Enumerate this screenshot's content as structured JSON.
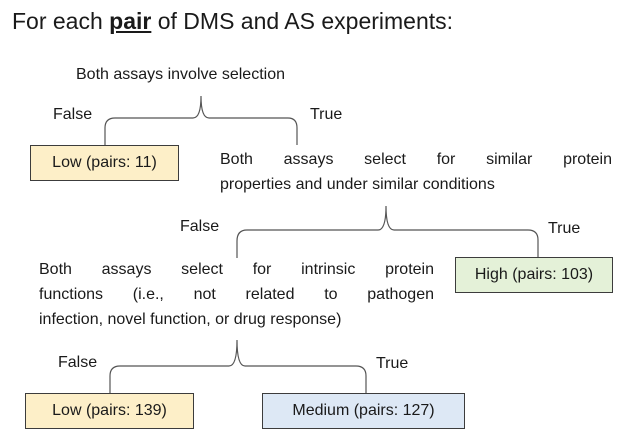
{
  "title": {
    "prefix": "For each ",
    "keyword": "pair",
    "suffix": " of DMS and AS experiments:"
  },
  "node1": {
    "question": "Both assays involve selection",
    "false_label": "False",
    "true_label": "True",
    "false_outcome": "Low (pairs: 11)"
  },
  "node2": {
    "question_line1": "Both assays select for similar protein",
    "question_line2": "properties and under similar conditions",
    "false_label": "False",
    "true_label": "True",
    "true_outcome": "High (pairs: 103)"
  },
  "node3": {
    "question_line1": "Both assays select for intrinsic protein",
    "question_line2": "functions (i.e., not related to pathogen",
    "question_line3": "infection, novel function, or drug response)",
    "false_label": "False",
    "true_label": "True",
    "false_outcome": "Low (pairs: 139)",
    "true_outcome": "Medium (pairs: 127)"
  },
  "colors": {
    "low": "#fdefc8",
    "high": "#e4f1d8",
    "medium": "#dde8f5",
    "line": "#555555"
  }
}
